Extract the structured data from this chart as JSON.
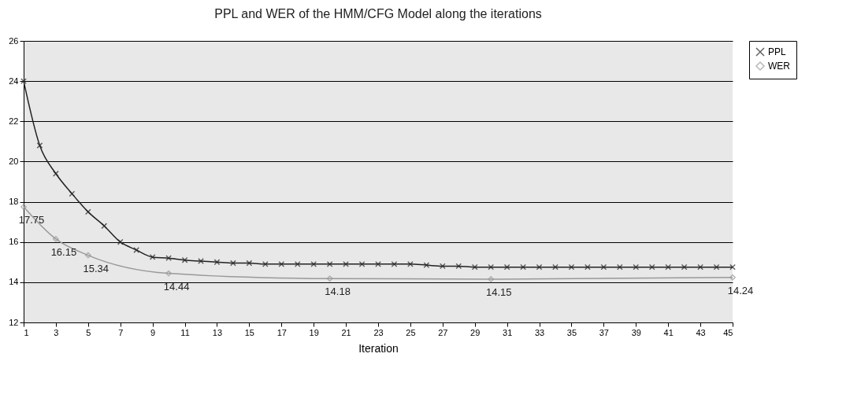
{
  "chart_data": {
    "type": "line",
    "title": "PPL and WER of the HMM/CFG Model along the iterations",
    "xlabel": "Iteration",
    "xlim": [
      1,
      45
    ],
    "xticks": [
      1,
      3,
      5,
      7,
      9,
      11,
      13,
      15,
      17,
      19,
      21,
      23,
      25,
      27,
      29,
      31,
      33,
      35,
      37,
      39,
      41,
      43,
      45
    ],
    "ylim": [
      12,
      26
    ],
    "yticks": [
      12,
      14,
      16,
      18,
      20,
      22,
      24,
      26
    ],
    "grid": "y",
    "legend": "right",
    "series": [
      {
        "name": "PPL",
        "color": "#222222",
        "marker": "cross",
        "x": [
          1,
          2,
          3,
          4,
          5,
          6,
          7,
          8,
          9,
          10,
          11,
          12,
          13,
          14,
          15,
          16,
          17,
          18,
          19,
          20,
          21,
          22,
          23,
          24,
          25,
          26,
          27,
          28,
          29,
          30,
          31,
          32,
          33,
          34,
          35,
          36,
          37,
          38,
          39,
          40,
          41,
          42,
          43,
          44,
          45
        ],
        "values": [
          24.0,
          20.8,
          19.4,
          18.4,
          17.5,
          16.8,
          16.0,
          15.6,
          15.25,
          15.2,
          15.1,
          15.05,
          15.0,
          14.95,
          14.95,
          14.9,
          14.9,
          14.9,
          14.9,
          14.9,
          14.9,
          14.9,
          14.9,
          14.9,
          14.9,
          14.85,
          14.8,
          14.8,
          14.75,
          14.75,
          14.75,
          14.75,
          14.75,
          14.75,
          14.75,
          14.75,
          14.75,
          14.75,
          14.75,
          14.75,
          14.75,
          14.75,
          14.75,
          14.75,
          14.75
        ]
      },
      {
        "name": "WER",
        "color": "#999999",
        "marker": "diamond",
        "x": [
          1,
          3,
          5,
          10,
          20,
          30,
          45
        ],
        "values": [
          17.75,
          16.15,
          15.34,
          14.44,
          14.18,
          14.15,
          14.24
        ],
        "value_labels": [
          "17.75",
          "16.15",
          "15.34",
          "14.44",
          "14.18",
          "14.15",
          "14.24"
        ]
      }
    ]
  }
}
